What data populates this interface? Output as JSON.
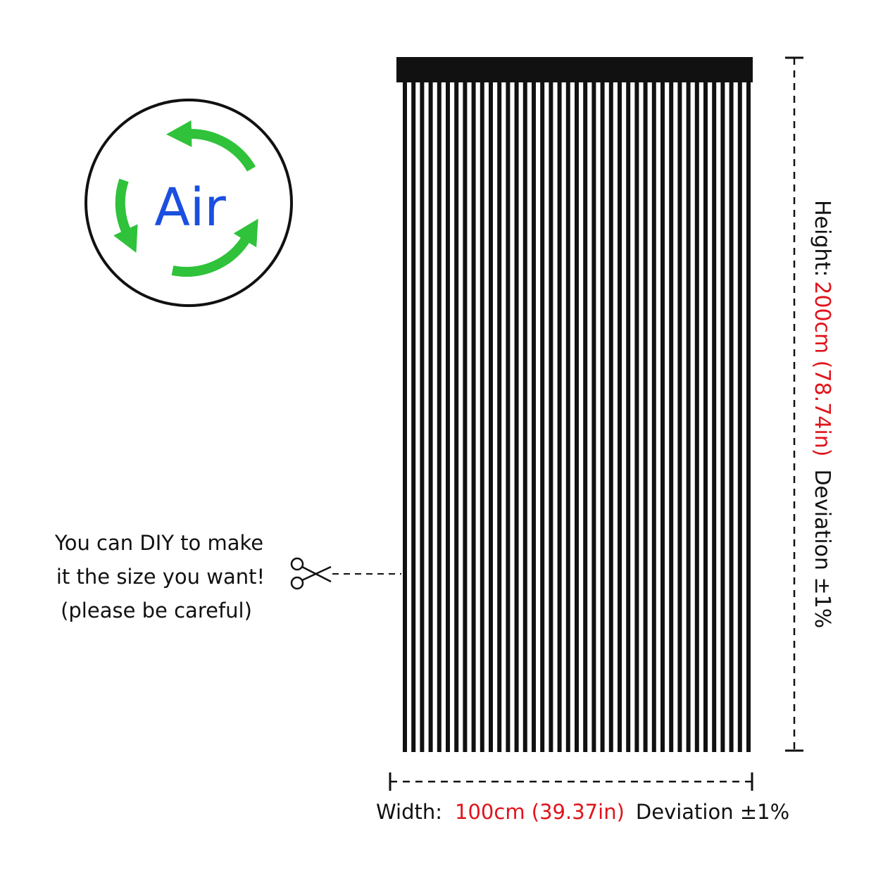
{
  "badge": {
    "label": "Air"
  },
  "note": {
    "lines": [
      "You can DIY to make",
      "it the size you want!",
      "(please be careful)"
    ]
  },
  "height": {
    "label": "Height:",
    "size": "200cm (78.74in)",
    "deviation": "Deviation ±1%"
  },
  "width": {
    "label": "Width:",
    "size": "100cm (39.37in)",
    "deviation": "Deviation ±1%"
  }
}
